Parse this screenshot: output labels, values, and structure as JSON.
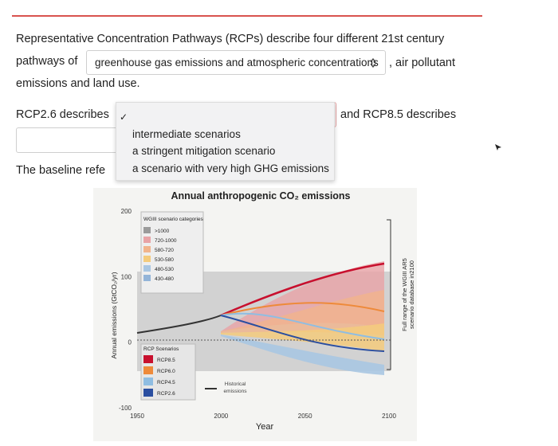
{
  "question": {
    "line1": "Representative Concentration Pathways (RCPs) describe four different 21st century",
    "pathways_of": "pathways of",
    "dropdown1": "greenhouse gas emissions and atmospheric concentrations",
    "air_pollutant": ", air pollutant",
    "line3": "emissions and land use.",
    "rcp26": "RCP2.6 describes",
    "check": "✓",
    "rcp85": "and RCP8.5 describes",
    "baseline": "The baseline refe",
    "options": [
      "intermediate scenarios",
      "a stringent mitigation scenario",
      "a scenario with very high GHG emissions"
    ]
  },
  "figure": {
    "title": "Annual anthropogenic CO₂ emissions",
    "ylabel": "Annual emissions (GtCO₂/yr)",
    "xlabel": "Year",
    "yticks": [
      200,
      100,
      0,
      -100
    ],
    "xticks": [
      1950,
      2000,
      2050,
      2100
    ],
    "range_label": [
      "Full range of the WGIII AR5",
      "scenario database in2100"
    ],
    "legend1": {
      "title": "WGIII scenario categories",
      "items": [
        {
          "label": ">1000",
          "color": "#9b9b9b"
        },
        {
          "label": "720-1000",
          "color": "#e8a3a6"
        },
        {
          "label": "580-720",
          "color": "#f1b48c"
        },
        {
          "label": "530-580",
          "color": "#f4cb7c"
        },
        {
          "label": "480-530",
          "color": "#a9c6e2"
        },
        {
          "label": "430-480",
          "color": "#93b4d8"
        }
      ]
    },
    "legend2": {
      "title": "RCP Scenarios",
      "items": [
        {
          "label": "RCP8.5",
          "color": "#c8102e"
        },
        {
          "label": "RCP6.0",
          "color": "#ee8a3a"
        },
        {
          "label": "RCP4.5",
          "color": "#8fbde2"
        },
        {
          "label": "RCP2.6",
          "color": "#2a4ea0"
        }
      ]
    },
    "historical": [
      "Historical",
      "emissions"
    ]
  }
}
